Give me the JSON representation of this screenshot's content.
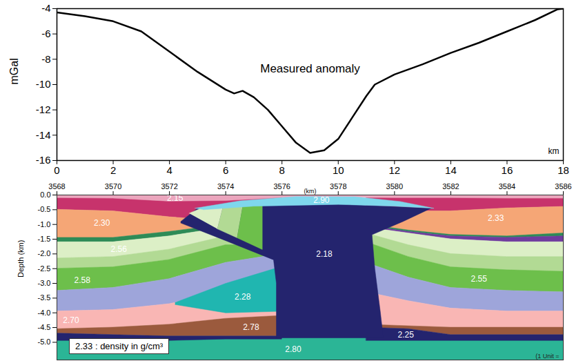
{
  "chart_data": [
    {
      "type": "line",
      "title": "Measured anomaly",
      "xlabel": "km",
      "ylabel": "mGal",
      "color": "#000000",
      "x": [
        0,
        1,
        2,
        3,
        4,
        5,
        6,
        6.3,
        6.6,
        7,
        7.5,
        8,
        8.5,
        9,
        9.5,
        10,
        10.5,
        11,
        11.3,
        12,
        13,
        14,
        15,
        16,
        17,
        17.8,
        18
      ],
      "values": [
        -4.3,
        -4.6,
        -5.0,
        -5.8,
        -7.4,
        -9.0,
        -10.4,
        -10.7,
        -10.5,
        -11.0,
        -12.0,
        -13.3,
        -14.6,
        -15.4,
        -15.2,
        -14.3,
        -12.6,
        -10.9,
        -10.0,
        -9.2,
        -8.4,
        -7.5,
        -6.7,
        -5.8,
        -4.9,
        -4.05,
        -4.0
      ],
      "xlim": [
        0,
        18
      ],
      "xticks": [
        0,
        2,
        4,
        6,
        8,
        10,
        12,
        14,
        16,
        18
      ],
      "ylim": [
        -16,
        -4
      ],
      "yticks": [
        -16,
        -14,
        -12,
        -10,
        -8,
        -6,
        -4
      ]
    },
    {
      "type": "cross_section",
      "xlabel": "(km)",
      "ylabel": "Depth (km)",
      "legend_text": "2.33 : density in g/cm³",
      "footer": "(1 Unit =",
      "xlim": [
        3568,
        3586
      ],
      "xticks": [
        3568,
        3570,
        3572,
        3574,
        3576,
        3578,
        3580,
        3582,
        3584,
        3586
      ],
      "ylim": [
        -5.6,
        0
      ],
      "yticks": [
        {
          "value": 0,
          "label": "0.0"
        },
        {
          "value": -0.5,
          "label": "-0.5"
        },
        {
          "value": -1,
          "label": "-1.0"
        },
        {
          "value": -1.5,
          "label": "-1.5"
        },
        {
          "value": -2,
          "label": "-2.0"
        },
        {
          "value": -2.5,
          "label": "-2.5"
        },
        {
          "value": -3,
          "label": "-3.0"
        },
        {
          "value": -3.5,
          "label": "-3.5"
        },
        {
          "value": -4,
          "label": "-4.0"
        },
        {
          "value": -4.5,
          "label": "-4.5"
        },
        {
          "value": -5,
          "label": "-5.0"
        }
      ],
      "bands": [
        {
          "color": "#2bb596",
          "x": [
            3568,
            3586
          ],
          "top": [
            -4.8,
            -4.8
          ],
          "bottom": [
            -5.6,
            -5.6
          ],
          "density": {
            "value": 2.8,
            "label": "2.80"
          },
          "label_at": [
            3576.4,
            -5.25
          ]
        },
        {
          "color": "#c7336c",
          "x": [
            3568,
            3570,
            3572,
            3574,
            3576
          ],
          "top": [
            -0.1,
            -0.1,
            -0.1,
            -0.1,
            -0.1
          ],
          "bottom": [
            -0.5,
            -0.55,
            -0.75,
            -0.9,
            -0.9
          ]
        },
        {
          "color": "#f5a676",
          "x": [
            3568,
            3570,
            3572,
            3574,
            3576
          ],
          "top": [
            -0.5,
            -0.55,
            -0.75,
            -0.9,
            -0.9
          ],
          "bottom": [
            -1.45,
            -1.45,
            -1.25,
            -1.0,
            -1.0
          ],
          "density": {
            "value": 2.3,
            "label": "2.30"
          },
          "label_at": [
            3569.6,
            -0.95
          ]
        },
        {
          "color": "#2e8b57",
          "x": [
            3568,
            3570,
            3572,
            3574,
            3576
          ],
          "top": [
            -1.45,
            -1.45,
            -1.25,
            -1.0,
            -1.0
          ],
          "bottom": [
            -1.6,
            -1.6,
            -1.4,
            -1.1,
            -1.1
          ]
        },
        {
          "color": "#dcefc6",
          "x": [
            3568,
            3570,
            3572,
            3574,
            3576
          ],
          "top": [
            -1.6,
            -1.6,
            -1.4,
            -1.1,
            -1.1
          ],
          "bottom": [
            -2.15,
            -2.1,
            -1.85,
            -1.4,
            -1.4
          ],
          "density": 2.56,
          "label_at": [
            3570.2,
            -1.85
          ]
        },
        {
          "color": "#b2da94",
          "x": [
            3568,
            3570,
            3572,
            3574,
            3576
          ],
          "top": [
            -2.15,
            -2.1,
            -1.85,
            -1.4,
            -1.4
          ],
          "bottom": [
            -2.5,
            -2.45,
            -2.2,
            -1.7,
            -1.7
          ]
        },
        {
          "color": "#6dbf4b",
          "x": [
            3568,
            3570,
            3572,
            3574,
            3576
          ],
          "top": [
            -2.5,
            -2.45,
            -2.2,
            -1.7,
            -1.7
          ],
          "bottom": [
            -3.25,
            -3.15,
            -2.85,
            -2.3,
            -2.0
          ],
          "density": 2.58,
          "label_at": [
            3568.9,
            -2.9
          ]
        },
        {
          "color": "#9ea5da",
          "x": [
            3568,
            3570,
            3572,
            3574,
            3576
          ],
          "top": [
            -3.25,
            -3.15,
            -2.85,
            -2.3,
            -2.0
          ],
          "bottom": [
            -3.95,
            -3.9,
            -3.7,
            -3.3,
            -2.8
          ]
        },
        {
          "color": "#f9b6b4",
          "x": [
            3568,
            3570,
            3572,
            3574,
            3576
          ],
          "top": [
            -3.95,
            -3.9,
            -3.7,
            -3.3,
            -2.8
          ],
          "bottom": [
            -4.55,
            -4.5,
            -4.4,
            -4.2,
            -4.1
          ],
          "density": {
            "value": 2.7,
            "label": "2.70"
          },
          "label_at": [
            3568.5,
            -4.25
          ]
        },
        {
          "color": "#9b5a3d",
          "x": [
            3568,
            3570,
            3572,
            3574,
            3576
          ],
          "top": [
            -4.55,
            -4.5,
            -4.4,
            -4.2,
            -4.1
          ],
          "bottom": [
            -4.7,
            -4.75,
            -4.8,
            -4.8,
            -4.8
          ],
          "density": 2.78,
          "label_at": [
            3574.9,
            -4.5
          ]
        },
        {
          "color": "#24246e",
          "x": [
            3568,
            3570,
            3572,
            3574,
            3576
          ],
          "top": [
            -4.7,
            -4.75,
            -4.8,
            -4.8,
            -4.8
          ],
          "bottom": [
            -4.95,
            -4.95,
            -4.95,
            -4.9,
            -4.9
          ]
        },
        {
          "color": "#c7336c",
          "x": [
            3579,
            3580.5,
            3582,
            3584,
            3586
          ],
          "top": [
            -0.1,
            -0.1,
            -0.1,
            -0.1,
            -0.1
          ],
          "bottom": [
            -0.5,
            -0.55,
            -0.55,
            -0.45,
            -0.4
          ]
        },
        {
          "color": "#f5a676",
          "x": [
            3579,
            3580.5,
            3582,
            3584,
            3586
          ],
          "top": [
            -0.5,
            -0.55,
            -0.55,
            -0.45,
            -0.4
          ],
          "bottom": [
            -1.0,
            -1.2,
            -1.35,
            -1.4,
            -1.3
          ],
          "density": 2.33,
          "label_at": [
            3583.6,
            -0.8
          ]
        },
        {
          "color": "#2e8b57",
          "x": [
            3579,
            3580.5,
            3582,
            3584,
            3586
          ],
          "top": [
            -1.0,
            -1.2,
            -1.35,
            -1.4,
            -1.3
          ],
          "bottom": [
            -1.05,
            -1.25,
            -1.4,
            -1.45,
            -1.4
          ]
        },
        {
          "color": "#6f3b9e",
          "x": [
            3579,
            3580.5,
            3582,
            3584,
            3586
          ],
          "top": [
            -1.05,
            -1.25,
            -1.4,
            -1.45,
            -1.4
          ],
          "bottom": [
            -1.1,
            -1.3,
            -1.5,
            -1.6,
            -1.6
          ]
        },
        {
          "color": "#dcefc6",
          "x": [
            3579,
            3580.5,
            3582,
            3584,
            3586
          ],
          "top": [
            -1.1,
            -1.3,
            -1.5,
            -1.6,
            -1.6
          ],
          "bottom": [
            -1.3,
            -1.7,
            -2.0,
            -2.1,
            -2.1
          ]
        },
        {
          "color": "#b2da94",
          "x": [
            3579,
            3580.5,
            3582,
            3584,
            3586
          ],
          "top": [
            -1.3,
            -1.7,
            -2.0,
            -2.1,
            -2.1
          ],
          "bottom": [
            -1.6,
            -2.1,
            -2.45,
            -2.55,
            -2.6
          ]
        },
        {
          "color": "#6dbf4b",
          "x": [
            3579,
            3580.5,
            3582,
            3584,
            3586
          ],
          "top": [
            -1.6,
            -2.1,
            -2.45,
            -2.55,
            -2.6
          ],
          "bottom": [
            -2.3,
            -2.8,
            -3.15,
            -3.25,
            -3.3
          ],
          "density": 2.55,
          "label_at": [
            3583.0,
            -2.85
          ]
        },
        {
          "color": "#9ea5da",
          "x": [
            3579,
            3580.5,
            3582,
            3584,
            3586
          ],
          "top": [
            -2.3,
            -2.8,
            -3.15,
            -3.25,
            -3.3
          ],
          "bottom": [
            -3.3,
            -3.6,
            -3.85,
            -3.95,
            -3.95
          ]
        },
        {
          "color": "#f9b6b4",
          "x": [
            3579,
            3580.5,
            3582,
            3584,
            3586
          ],
          "top": [
            -3.3,
            -3.6,
            -3.85,
            -3.95,
            -3.95
          ],
          "bottom": [
            -4.4,
            -4.45,
            -4.5,
            -4.5,
            -4.5
          ]
        },
        {
          "color": "#9b5a3d",
          "x": [
            3579,
            3580.5,
            3582,
            3584,
            3586
          ],
          "top": [
            -4.4,
            -4.45,
            -4.5,
            -4.5,
            -4.5
          ],
          "bottom": [
            -4.5,
            -4.55,
            -4.75,
            -4.75,
            -4.75
          ]
        },
        {
          "color": "#24246e",
          "x": [
            3579,
            3580.5,
            3582,
            3584,
            3586
          ],
          "top": [
            -4.5,
            -4.55,
            -4.75,
            -4.75,
            -4.75
          ],
          "bottom": [
            -4.95,
            -4.95,
            -4.95,
            -4.95,
            -4.95
          ],
          "density": 2.25,
          "label_at": [
            3580.4,
            -4.75
          ]
        },
        {
          "color": "#eba5bd",
          "x": [
            3568,
            3570,
            3572,
            3574,
            3576,
            3578,
            3580,
            3582,
            3584,
            3586
          ],
          "top": [
            0,
            0,
            0,
            0,
            0,
            0,
            0,
            0,
            0,
            0
          ],
          "bottom": [
            -0.1,
            -0.12,
            -0.22,
            -0.2,
            -0.1,
            -0.08,
            -0.1,
            -0.1,
            -0.12,
            -0.12
          ],
          "density": 2.15,
          "label_at": [
            3572.2,
            -0.12
          ]
        }
      ],
      "bodies": [
        {
          "color": "#20b6b0",
          "points": [
            [
              3572.2,
              -3.65
            ],
            [
              3574.0,
              -3.0
            ],
            [
              3575.9,
              -2.45
            ],
            [
              3575.9,
              -3.95
            ],
            [
              3574.0,
              -4.0
            ],
            [
              3572.2,
              -3.72
            ]
          ],
          "density": 2.28,
          "label_at": [
            3574.6,
            -3.45
          ]
        },
        {
          "color": "#24246e",
          "points": [
            [
              3572.4,
              -0.9
            ],
            [
              3573.0,
              -0.45
            ],
            [
              3575.0,
              -0.35
            ],
            [
              3578.0,
              -0.3
            ],
            [
              3581.3,
              -0.45
            ],
            [
              3580.3,
              -0.9
            ],
            [
              3579.2,
              -1.35
            ],
            [
              3579.3,
              -2.5
            ],
            [
              3579.5,
              -4.0
            ],
            [
              3579.6,
              -4.85
            ],
            [
              3575.8,
              -4.85
            ],
            [
              3575.8,
              -3.0
            ],
            [
              3575.7,
              -2.2
            ],
            [
              3574.0,
              -1.55
            ],
            [
              3572.4,
              -0.95
            ]
          ],
          "density": 2.18,
          "label_at": [
            3577.5,
            -2.0
          ]
        },
        {
          "color": "#dcefc6",
          "points": [
            [
              3572.7,
              -0.62
            ],
            [
              3573.2,
              -0.42
            ],
            [
              3573.9,
              -0.4
            ],
            [
              3573.7,
              -1.15
            ]
          ]
        },
        {
          "color": "#b2da94",
          "points": [
            [
              3573.9,
              -0.4
            ],
            [
              3574.6,
              -0.38
            ],
            [
              3574.4,
              -1.45
            ],
            [
              3573.7,
              -1.15
            ]
          ]
        },
        {
          "color": "#6dbf4b",
          "points": [
            [
              3574.6,
              -0.38
            ],
            [
              3575.3,
              -0.36
            ],
            [
              3575.3,
              -1.85
            ],
            [
              3574.4,
              -1.45
            ]
          ]
        },
        {
          "color": "#7fd7ec",
          "points": [
            [
              3572.9,
              -0.45
            ],
            [
              3574.5,
              -0.2
            ],
            [
              3576.5,
              -0.05
            ],
            [
              3578.6,
              -0.06
            ],
            [
              3580.2,
              -0.22
            ],
            [
              3581.4,
              -0.45
            ],
            [
              3580.0,
              -0.38
            ],
            [
              3578.0,
              -0.32
            ],
            [
              3575.0,
              -0.38
            ],
            [
              3573.2,
              -0.5
            ]
          ],
          "density": {
            "value": 2.9,
            "label": "2.90"
          },
          "label_at": [
            3577.4,
            -0.19
          ]
        }
      ]
    }
  ]
}
